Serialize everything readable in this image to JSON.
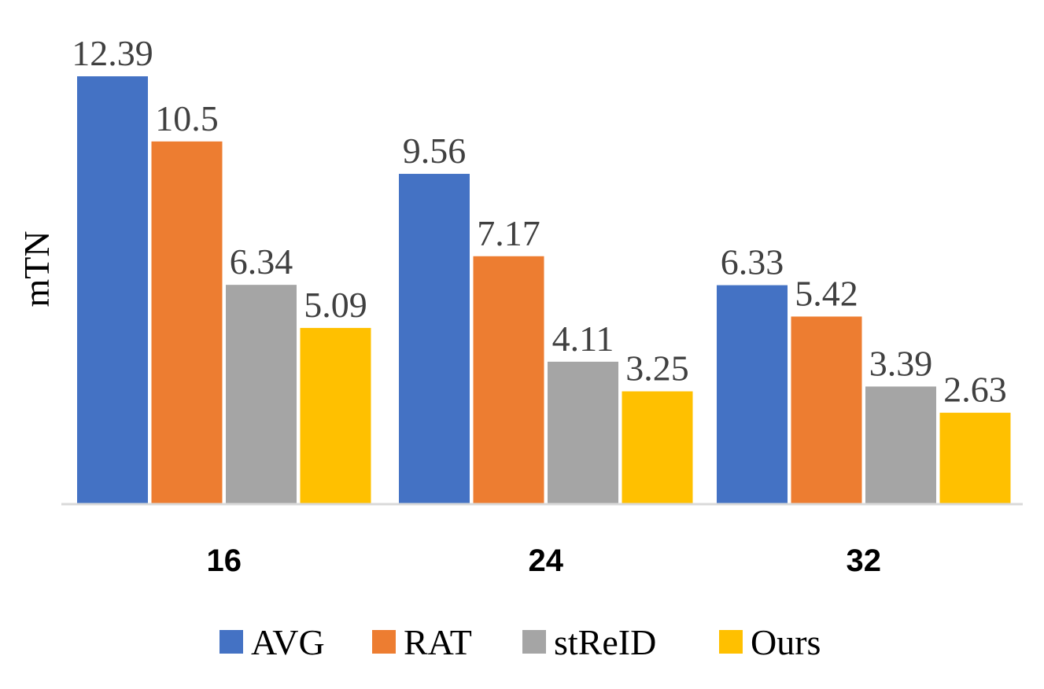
{
  "chart_data": {
    "type": "bar",
    "title": "",
    "xlabel": "",
    "ylabel": "mTN",
    "categories": [
      "16",
      "24",
      "32"
    ],
    "series": [
      {
        "name": "AVG",
        "color": "#4472C4",
        "values": [
          12.39,
          9.56,
          6.33
        ]
      },
      {
        "name": "RAT",
        "color": "#ED7D31",
        "values": [
          10.5,
          7.17,
          5.42
        ]
      },
      {
        "name": "stReID",
        "color": "#A5A5A5",
        "values": [
          6.34,
          4.11,
          3.39
        ]
      },
      {
        "name": "Ours",
        "color": "#FFC000",
        "values": [
          5.09,
          3.25,
          2.63
        ]
      }
    ],
    "ylim": [
      0,
      12.39
    ],
    "grid": false,
    "legend_position": "bottom"
  }
}
